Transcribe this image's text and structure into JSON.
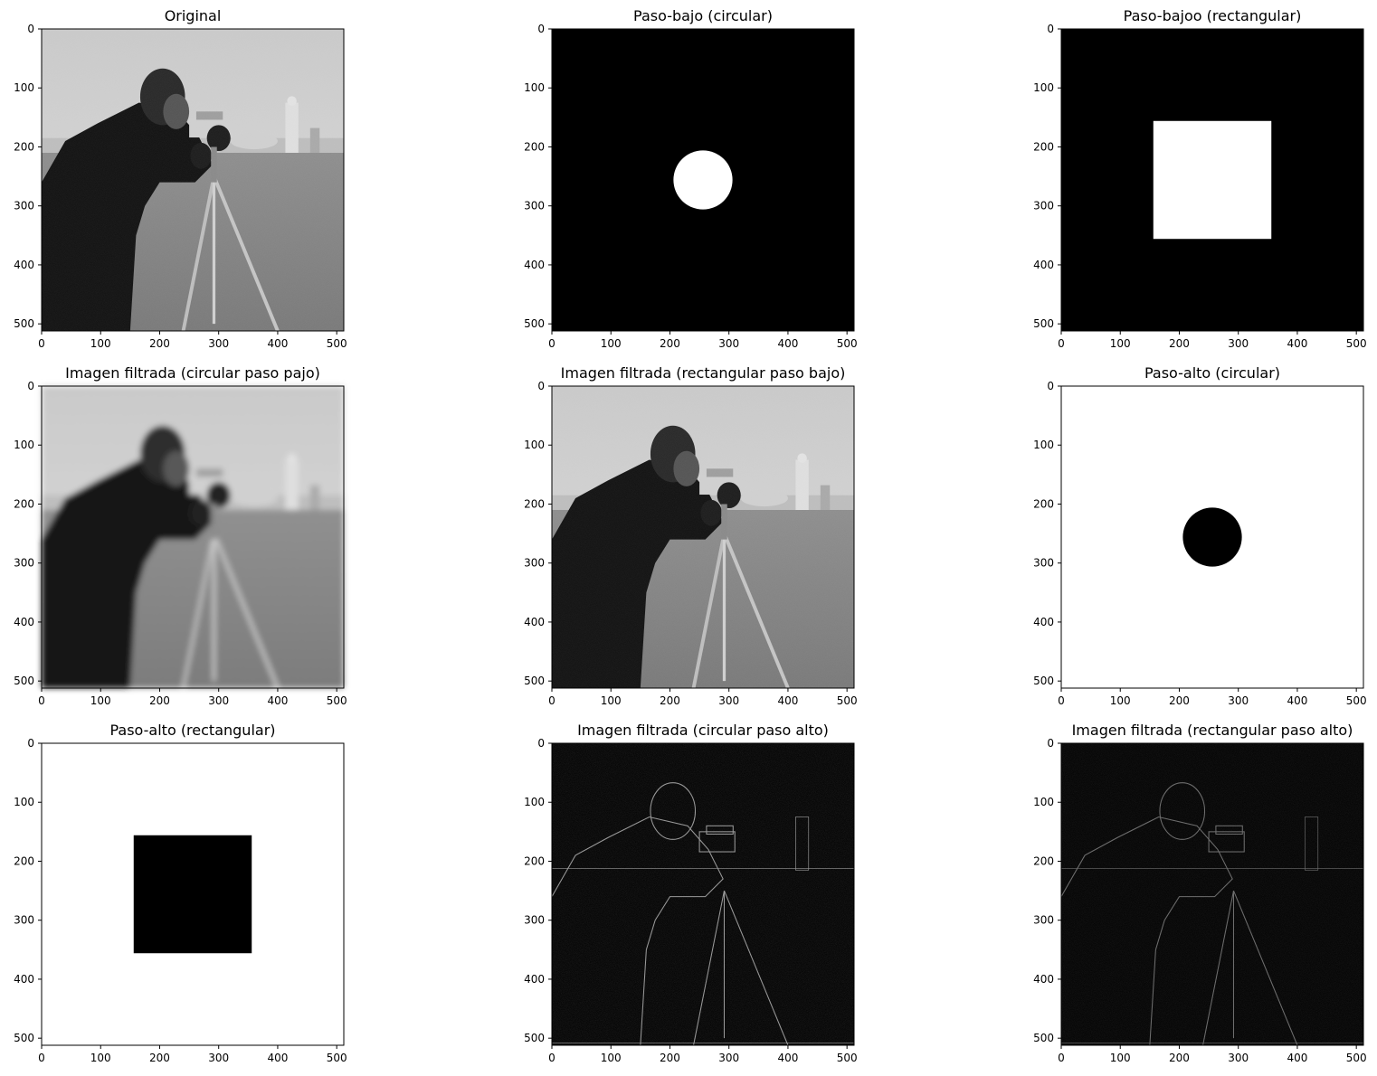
{
  "chart_data": [
    {
      "type": "image",
      "title": "Original",
      "image": "photo",
      "xlim": [
        0,
        512
      ],
      "ylim": [
        512,
        0
      ],
      "xticks": [
        0,
        100,
        200,
        300,
        400,
        500
      ],
      "yticks": [
        0,
        100,
        200,
        300,
        400,
        500
      ],
      "colormap": "gray"
    },
    {
      "type": "image",
      "title": "Paso-bajo (circular)",
      "image": "mask",
      "background": "#000000",
      "shape": {
        "kind": "circle",
        "center": [
          256,
          256
        ],
        "radius": 50,
        "fill": "#ffffff"
      },
      "xlim": [
        0,
        512
      ],
      "ylim": [
        512,
        0
      ],
      "xticks": [
        0,
        100,
        200,
        300,
        400,
        500
      ],
      "yticks": [
        0,
        100,
        200,
        300,
        400,
        500
      ]
    },
    {
      "type": "image",
      "title": "Paso-bajoo (rectangular)",
      "image": "mask",
      "background": "#000000",
      "shape": {
        "kind": "rect",
        "x": [
          156,
          356
        ],
        "y": [
          156,
          356
        ],
        "fill": "#ffffff"
      },
      "xlim": [
        0,
        512
      ],
      "ylim": [
        512,
        0
      ],
      "xticks": [
        0,
        100,
        200,
        300,
        400,
        500
      ],
      "yticks": [
        0,
        100,
        200,
        300,
        400,
        500
      ]
    },
    {
      "type": "image",
      "title": "Imagen filtrada (circular paso pajo)",
      "image": "photo-blurred",
      "xlim": [
        0,
        512
      ],
      "ylim": [
        512,
        0
      ],
      "xticks": [
        0,
        100,
        200,
        300,
        400,
        500
      ],
      "yticks": [
        0,
        100,
        200,
        300,
        400,
        500
      ],
      "colormap": "gray"
    },
    {
      "type": "image",
      "title": "Imagen filtrada (rectangular paso bajo)",
      "image": "photo",
      "xlim": [
        0,
        512
      ],
      "ylim": [
        512,
        0
      ],
      "xticks": [
        0,
        100,
        200,
        300,
        400,
        500
      ],
      "yticks": [
        0,
        100,
        200,
        300,
        400,
        500
      ],
      "colormap": "gray"
    },
    {
      "type": "image",
      "title": "Paso-alto (circular)",
      "image": "mask",
      "background": "#ffffff",
      "shape": {
        "kind": "circle",
        "center": [
          256,
          256
        ],
        "radius": 50,
        "fill": "#000000"
      },
      "xlim": [
        0,
        512
      ],
      "ylim": [
        512,
        0
      ],
      "xticks": [
        0,
        100,
        200,
        300,
        400,
        500
      ],
      "yticks": [
        0,
        100,
        200,
        300,
        400,
        500
      ]
    },
    {
      "type": "image",
      "title": "Paso-alto (rectangular)",
      "image": "mask",
      "background": "#ffffff",
      "shape": {
        "kind": "rect",
        "x": [
          156,
          356
        ],
        "y": [
          156,
          356
        ],
        "fill": "#000000"
      },
      "xlim": [
        0,
        512
      ],
      "ylim": [
        512,
        0
      ],
      "xticks": [
        0,
        100,
        200,
        300,
        400,
        500
      ],
      "yticks": [
        0,
        100,
        200,
        300,
        400,
        500
      ]
    },
    {
      "type": "image",
      "title": "Imagen filtrada (circular paso alto)",
      "image": "edges",
      "xlim": [
        0,
        512
      ],
      "ylim": [
        512,
        0
      ],
      "xticks": [
        0,
        100,
        200,
        300,
        400,
        500
      ],
      "yticks": [
        0,
        100,
        200,
        300,
        400,
        500
      ],
      "colormap": "gray"
    },
    {
      "type": "image",
      "title": "Imagen filtrada (rectangular paso alto)",
      "image": "edges-faint",
      "xlim": [
        0,
        512
      ],
      "ylim": [
        512,
        0
      ],
      "xticks": [
        0,
        100,
        200,
        300,
        400,
        500
      ],
      "yticks": [
        0,
        100,
        200,
        300,
        400,
        500
      ],
      "colormap": "gray"
    }
  ]
}
